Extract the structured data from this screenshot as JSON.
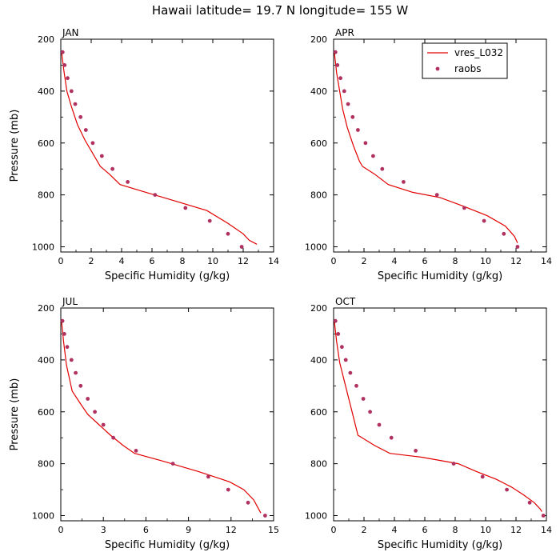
{
  "figure": {
    "title": "Hawaii  latitude= 19.7 N longitude= 155 W"
  },
  "legend": {
    "model_label": "vres_L032",
    "obs_label": "raobs",
    "placement": "top-right of APR panel"
  },
  "colors": {
    "model": "#e00000",
    "obs": "#b03060",
    "axis": "#000000"
  },
  "chart_data": [
    {
      "type": "line",
      "panel": "JAN",
      "title": "JAN",
      "xlabel": "Specific Humidity (g/kg)",
      "ylabel": "Pressure (mb)",
      "xlim": [
        0,
        14
      ],
      "ylim": [
        1020,
        200
      ],
      "xticks": [
        0,
        2,
        4,
        6,
        8,
        10,
        12,
        14
      ],
      "yticks": [
        200,
        400,
        600,
        800,
        1000
      ],
      "series": [
        {
          "name": "vres_L032",
          "kind": "line",
          "points": [
            [
              0.05,
              250
            ],
            [
              0.2,
              320
            ],
            [
              0.4,
              400
            ],
            [
              0.7,
              460
            ],
            [
              1.1,
              530
            ],
            [
              1.6,
              590
            ],
            [
              2.1,
              640
            ],
            [
              2.6,
              690
            ],
            [
              3.2,
              720
            ],
            [
              3.9,
              760
            ],
            [
              5.6,
              790
            ],
            [
              7.6,
              825
            ],
            [
              9.6,
              860
            ],
            [
              11.0,
              910
            ],
            [
              12.0,
              950
            ],
            [
              12.4,
              975
            ],
            [
              12.9,
              990
            ]
          ]
        },
        {
          "name": "raobs",
          "kind": "scatter",
          "points": [
            [
              0.12,
              250
            ],
            [
              0.25,
              300
            ],
            [
              0.45,
              350
            ],
            [
              0.7,
              400
            ],
            [
              0.95,
              450
            ],
            [
              1.3,
              500
            ],
            [
              1.65,
              550
            ],
            [
              2.1,
              600
            ],
            [
              2.7,
              650
            ],
            [
              3.4,
              700
            ],
            [
              4.4,
              750
            ],
            [
              6.2,
              800
            ],
            [
              8.2,
              850
            ],
            [
              9.8,
              900
            ],
            [
              11.0,
              950
            ],
            [
              11.9,
              1000
            ]
          ]
        }
      ]
    },
    {
      "type": "line",
      "panel": "APR",
      "title": "APR",
      "xlabel": "Specific Humidity (g/kg)",
      "ylabel": "",
      "xlim": [
        0,
        14
      ],
      "ylim": [
        1020,
        200
      ],
      "xticks": [
        0,
        2,
        4,
        6,
        8,
        10,
        12,
        14
      ],
      "yticks": [
        200,
        400,
        600,
        800,
        1000
      ],
      "series": [
        {
          "name": "vres_L032",
          "kind": "line",
          "points": [
            [
              0.05,
              250
            ],
            [
              0.2,
              330
            ],
            [
              0.4,
              400
            ],
            [
              0.6,
              470
            ],
            [
              0.9,
              540
            ],
            [
              1.3,
              610
            ],
            [
              1.7,
              670
            ],
            [
              1.9,
              690
            ],
            [
              2.7,
              720
            ],
            [
              3.6,
              760
            ],
            [
              5.2,
              790
            ],
            [
              7.0,
              810
            ],
            [
              8.6,
              845
            ],
            [
              10.1,
              880
            ],
            [
              11.3,
              920
            ],
            [
              11.9,
              960
            ],
            [
              12.1,
              985
            ]
          ]
        },
        {
          "name": "raobs",
          "kind": "scatter",
          "points": [
            [
              0.12,
              250
            ],
            [
              0.25,
              300
            ],
            [
              0.45,
              350
            ],
            [
              0.7,
              400
            ],
            [
              0.95,
              450
            ],
            [
              1.25,
              500
            ],
            [
              1.6,
              550
            ],
            [
              2.1,
              600
            ],
            [
              2.6,
              650
            ],
            [
              3.2,
              700
            ],
            [
              4.6,
              750
            ],
            [
              6.8,
              800
            ],
            [
              8.6,
              850
            ],
            [
              9.9,
              900
            ],
            [
              11.2,
              950
            ],
            [
              12.1,
              1000
            ]
          ]
        }
      ]
    },
    {
      "type": "line",
      "panel": "JUL",
      "title": "JUL",
      "xlabel": "Specific Humidity (g/kg)",
      "ylabel": "Pressure (mb)",
      "xlim": [
        0,
        15
      ],
      "ylim": [
        1020,
        200
      ],
      "xticks": [
        0,
        3,
        6,
        9,
        12,
        15
      ],
      "yticks": [
        200,
        400,
        600,
        800,
        1000
      ],
      "series": [
        {
          "name": "vres_L032",
          "kind": "line",
          "points": [
            [
              0.05,
              250
            ],
            [
              0.2,
              330
            ],
            [
              0.4,
              420
            ],
            [
              0.8,
              520
            ],
            [
              1.4,
              570
            ],
            [
              1.9,
              610
            ],
            [
              2.7,
              650
            ],
            [
              3.5,
              690
            ],
            [
              4.4,
              730
            ],
            [
              5.2,
              760
            ],
            [
              7.2,
              790
            ],
            [
              9.7,
              830
            ],
            [
              11.9,
              870
            ],
            [
              12.9,
              900
            ],
            [
              13.6,
              940
            ],
            [
              13.9,
              970
            ],
            [
              14.1,
              990
            ]
          ]
        },
        {
          "name": "raobs",
          "kind": "scatter",
          "points": [
            [
              0.12,
              250
            ],
            [
              0.25,
              300
            ],
            [
              0.45,
              350
            ],
            [
              0.75,
              400
            ],
            [
              1.05,
              450
            ],
            [
              1.4,
              500
            ],
            [
              1.9,
              550
            ],
            [
              2.4,
              600
            ],
            [
              3.0,
              650
            ],
            [
              3.7,
              700
            ],
            [
              5.3,
              750
            ],
            [
              7.9,
              800
            ],
            [
              10.4,
              850
            ],
            [
              11.8,
              900
            ],
            [
              13.2,
              950
            ],
            [
              14.4,
              1000
            ]
          ]
        }
      ]
    },
    {
      "type": "line",
      "panel": "OCT",
      "title": "OCT",
      "xlabel": "Specific Humidity (g/kg)",
      "ylabel": "",
      "xlim": [
        0,
        14
      ],
      "ylim": [
        1020,
        200
      ],
      "xticks": [
        0,
        2,
        4,
        6,
        8,
        10,
        12,
        14
      ],
      "yticks": [
        200,
        400,
        600,
        800,
        1000
      ],
      "series": [
        {
          "name": "vres_L032",
          "kind": "line",
          "points": [
            [
              0.05,
              250
            ],
            [
              0.2,
              330
            ],
            [
              0.4,
              410
            ],
            [
              0.7,
              480
            ],
            [
              1.0,
              550
            ],
            [
              1.3,
              620
            ],
            [
              1.6,
              690
            ],
            [
              2.7,
              730
            ],
            [
              3.7,
              760
            ],
            [
              5.8,
              775
            ],
            [
              8.2,
              800
            ],
            [
              9.4,
              830
            ],
            [
              10.7,
              860
            ],
            [
              11.7,
              890
            ],
            [
              12.5,
              920
            ],
            [
              13.2,
              950
            ],
            [
              13.6,
              975
            ],
            [
              13.7,
              985
            ]
          ]
        },
        {
          "name": "raobs",
          "kind": "scatter",
          "points": [
            [
              0.12,
              250
            ],
            [
              0.3,
              300
            ],
            [
              0.55,
              350
            ],
            [
              0.8,
              400
            ],
            [
              1.1,
              450
            ],
            [
              1.5,
              500
            ],
            [
              1.95,
              550
            ],
            [
              2.4,
              600
            ],
            [
              3.0,
              650
            ],
            [
              3.8,
              700
            ],
            [
              5.4,
              750
            ],
            [
              7.9,
              800
            ],
            [
              9.8,
              850
            ],
            [
              11.4,
              900
            ],
            [
              12.9,
              950
            ],
            [
              13.8,
              1000
            ]
          ]
        }
      ]
    }
  ]
}
